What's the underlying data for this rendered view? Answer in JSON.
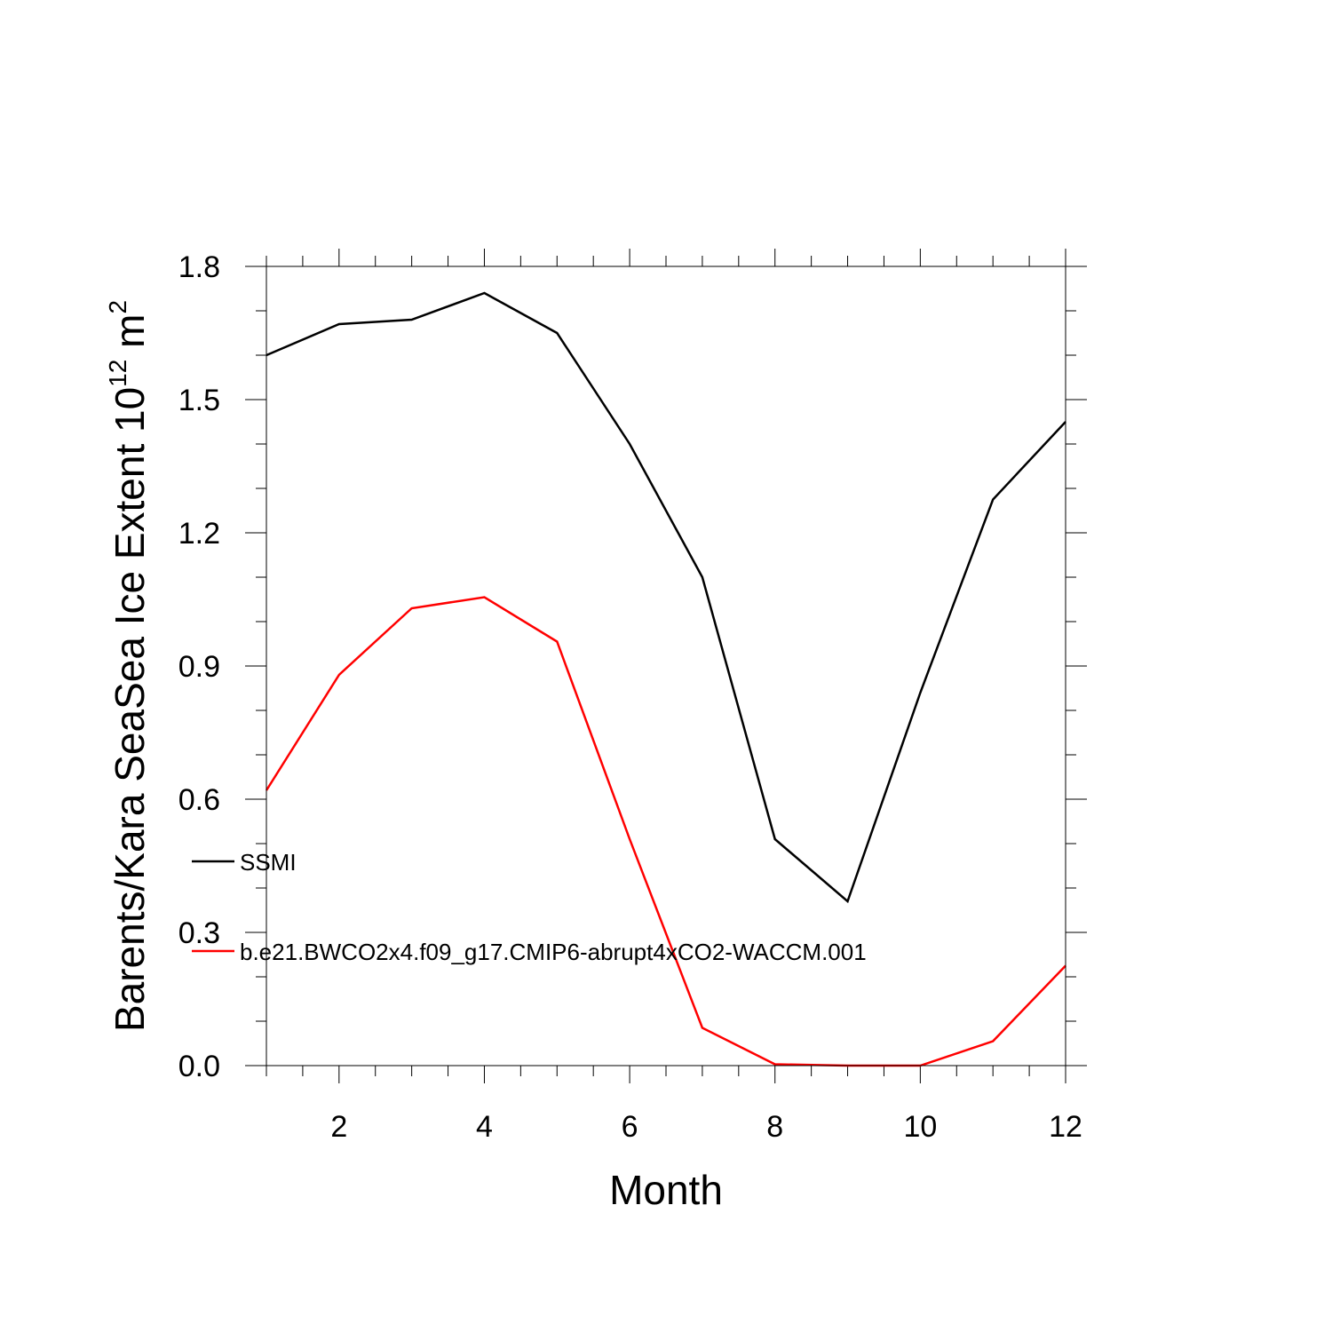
{
  "chart_data": {
    "type": "line",
    "title": "",
    "xlabel": "Month",
    "ylabel": "Barents/Kara SeaSea Ice Extent 10",
    "ylabel_sup": "12",
    "ylabel_unit": " m",
    "ylabel_unit_sup": "2",
    "xlim": [
      1,
      12
    ],
    "ylim": [
      0,
      1.8
    ],
    "xticks": [
      2,
      4,
      6,
      8,
      10,
      12
    ],
    "xtick_labels": [
      "2",
      "4",
      "6",
      "8",
      "10",
      "12"
    ],
    "yticks": [
      0,
      0.3,
      0.6,
      0.9,
      1.2,
      1.5,
      1.8
    ],
    "ytick_labels": [
      "0.0",
      "0.3",
      "0.6",
      "0.9",
      "1.2",
      "1.5",
      "1.8"
    ],
    "grid": false,
    "legend_position": "left-middle",
    "x": [
      1,
      2,
      3,
      4,
      5,
      6,
      7,
      8,
      9,
      10,
      11,
      12
    ],
    "series": [
      {
        "name": "SSMI",
        "color": "#000000",
        "values": [
          1.6,
          1.67,
          1.68,
          1.74,
          1.65,
          1.4,
          1.1,
          0.51,
          0.37,
          0.84,
          1.275,
          1.45
        ]
      },
      {
        "name": "b.e21.BWCO2x4.f09_g17.CMIP6-abrupt4xCO2-WACCM.001",
        "color": "#ff0000",
        "values": [
          0.62,
          0.88,
          1.03,
          1.055,
          0.955,
          0.51,
          0.085,
          0.003,
          0.0,
          0.0,
          0.055,
          0.225
        ]
      }
    ]
  }
}
